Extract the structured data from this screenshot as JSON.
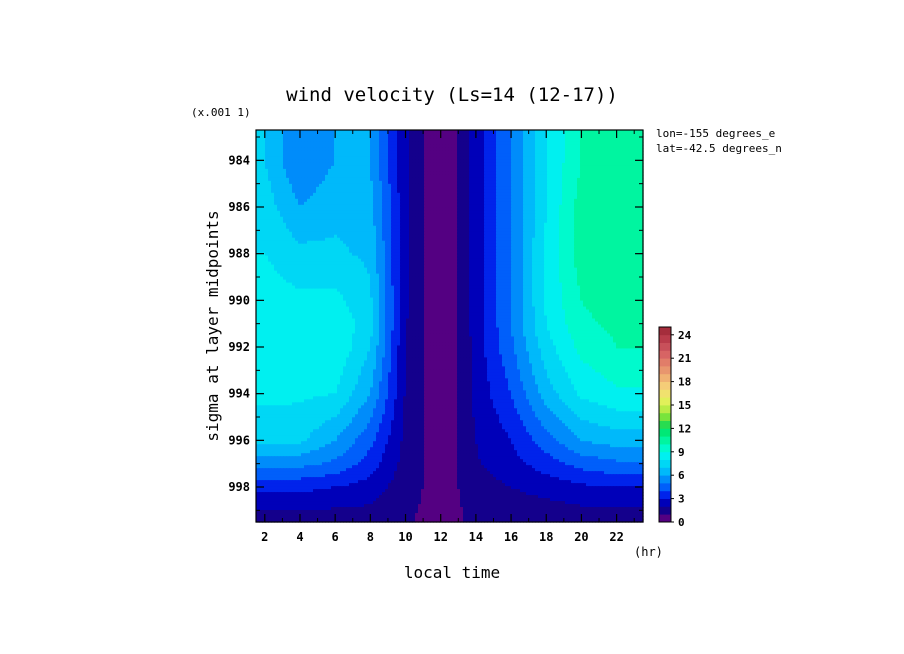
{
  "chart_data": {
    "type": "heatmap",
    "title": "wind velocity (Ls=14 (12-17))",
    "xlabel": "local time",
    "x_unit": "(hr)",
    "ylabel": "sigma at layer midpoints",
    "y_multiplier": "(x.001 1)",
    "annotations": [
      "lon=-155 degrees_e",
      "lat=-42.5 degrees_n"
    ],
    "x_ticks": [
      "2",
      "4",
      "6",
      "8",
      "10",
      "12",
      "14",
      "16",
      "18",
      "20",
      "22"
    ],
    "y_ticks": [
      "984",
      "986",
      "988",
      "990",
      "992",
      "994",
      "996",
      "998"
    ],
    "xlim": [
      1.5,
      23.5
    ],
    "ylim": [
      982.7,
      999.5
    ],
    "y_inverted": true,
    "colorbar": {
      "ticks": [
        "0",
        "3",
        "6",
        "9",
        "12",
        "15",
        "18",
        "21",
        "24"
      ],
      "min": 0,
      "max": 25,
      "step": 1,
      "position": "right"
    },
    "x": [
      1.5,
      2,
      4,
      6,
      8,
      10,
      11,
      12,
      13,
      14,
      16,
      18,
      20,
      22,
      23.5
    ],
    "y": [
      982.7,
      984,
      986,
      988,
      990,
      991,
      992,
      994,
      996,
      997,
      998,
      999,
      999.5
    ],
    "z": [
      [
        7.0,
        7.0,
        5.0,
        6.0,
        6.0,
        2.2,
        1.0,
        0.6,
        1.0,
        2.5,
        5.0,
        8.0,
        10.0,
        11.0,
        11.0
      ],
      [
        7.0,
        7.0,
        5.0,
        6.0,
        6.0,
        2.2,
        1.0,
        0.6,
        1.0,
        2.5,
        5.0,
        8.0,
        10.0,
        10.5,
        10.5
      ],
      [
        7.5,
        7.5,
        6.0,
        6.7,
        6.3,
        2.2,
        1.0,
        0.6,
        1.0,
        2.5,
        5.0,
        8.0,
        10.5,
        10.5,
        10.5
      ],
      [
        8.0,
        8.0,
        7.3,
        7.2,
        6.8,
        2.2,
        1.0,
        0.6,
        1.0,
        2.5,
        5.0,
        8.2,
        10.5,
        10.5,
        10.5
      ],
      [
        8.5,
        8.5,
        8.2,
        8.3,
        7.2,
        2.2,
        1.0,
        0.6,
        1.0,
        2.5,
        5.0,
        8.2,
        10.0,
        10.5,
        10.5
      ],
      [
        8.6,
        8.6,
        8.5,
        8.8,
        7.4,
        2.1,
        1.0,
        0.6,
        1.0,
        2.5,
        5.0,
        8.0,
        9.8,
        10.2,
        10.2
      ],
      [
        8.5,
        8.5,
        8.5,
        8.9,
        7.0,
        2.0,
        1.0,
        0.6,
        1.0,
        2.4,
        4.8,
        7.6,
        9.3,
        10.0,
        10.0
      ],
      [
        8.3,
        8.3,
        8.2,
        8.0,
        6.0,
        1.9,
        1.0,
        0.6,
        1.0,
        2.3,
        4.0,
        6.5,
        8.2,
        8.8,
        8.8
      ],
      [
        7.2,
        7.2,
        7.2,
        6.0,
        4.3,
        1.7,
        1.0,
        0.6,
        1.0,
        2.0,
        3.0,
        4.6,
        6.0,
        6.5,
        6.5
      ],
      [
        5.3,
        5.3,
        5.3,
        4.8,
        3.5,
        1.6,
        1.0,
        0.6,
        1.0,
        1.9,
        2.6,
        3.5,
        4.4,
        4.8,
        4.8
      ],
      [
        3.3,
        3.3,
        3.3,
        3.0,
        2.6,
        1.4,
        1.0,
        0.7,
        1.0,
        1.6,
        2.0,
        2.4,
        2.8,
        3.0,
        3.0
      ],
      [
        2.0,
        2.0,
        2.0,
        1.9,
        1.8,
        1.2,
        0.9,
        0.7,
        0.9,
        1.3,
        1.5,
        1.6,
        1.8,
        1.9,
        1.9
      ],
      [
        1.8,
        1.8,
        1.8,
        1.7,
        1.6,
        1.1,
        0.9,
        0.7,
        0.9,
        1.2,
        1.4,
        1.5,
        1.6,
        1.7,
        1.7
      ]
    ]
  }
}
